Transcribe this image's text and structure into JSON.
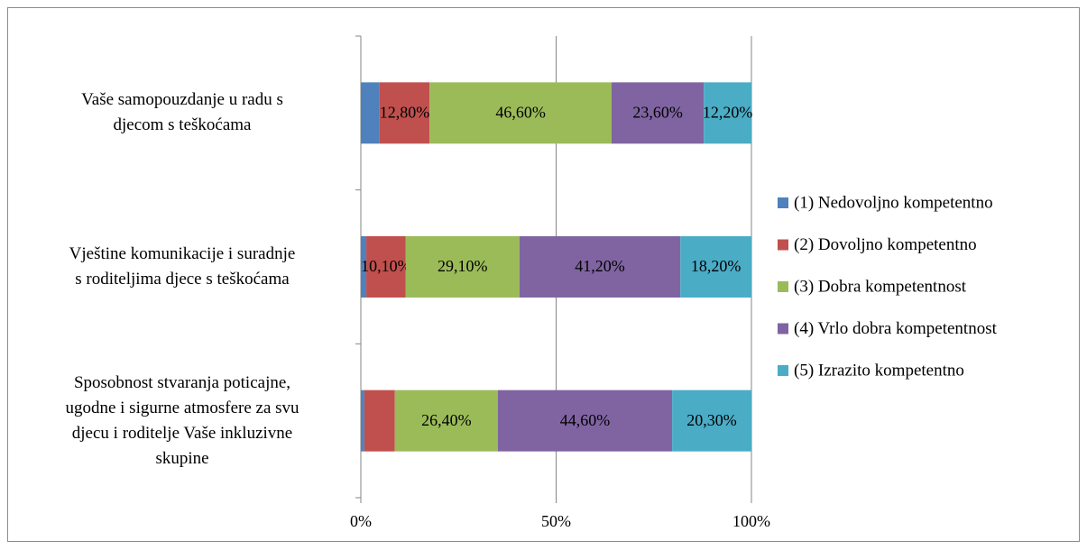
{
  "chart_data": {
    "type": "bar",
    "orientation": "horizontal",
    "stacked": true,
    "categories": [
      "Vaše samopouzdanje u radu s\ndjecom s teškoćama",
      "Vještine komunikacije i suradnje\ns roditeljima djece s teškoćama",
      "Sposobnost stvaranja poticajne,\nugodne i sigurne atmosfere za svu\ndjecu i roditelje Vaše inkluzivne\nskupine"
    ],
    "series": [
      {
        "name": "(1) Nedovoljno kompetentno",
        "color": "#4f81bd",
        "values": [
          4.8,
          1.4,
          0.9
        ],
        "value_labels": [
          null,
          null,
          null
        ]
      },
      {
        "name": "(2) Dovoljno kompetentno",
        "color": "#c0504d",
        "values": [
          12.8,
          10.1,
          7.8
        ],
        "value_labels": [
          "12,80%",
          "10,10%",
          null
        ]
      },
      {
        "name": "(3) Dobra kompetentnost",
        "color": "#9bbb59",
        "values": [
          46.6,
          29.1,
          26.4
        ],
        "value_labels": [
          "46,60%",
          "29,10%",
          "26,40%"
        ]
      },
      {
        "name": "(4) Vrlo dobra kompetentnost",
        "color": "#8064a2",
        "values": [
          23.6,
          41.2,
          44.6
        ],
        "value_labels": [
          "23,60%",
          "41,20%",
          "44,60%"
        ]
      },
      {
        "name": "(5) Izrazito kompetentno",
        "color": "#4bacc6",
        "values": [
          12.2,
          18.2,
          20.3
        ],
        "value_labels": [
          "12,20%",
          "18,20%",
          "20,30%"
        ]
      }
    ],
    "xlim": [
      0,
      100
    ],
    "xticks": [
      {
        "value": 0,
        "label": "0%"
      },
      {
        "value": 50,
        "label": "50%"
      },
      {
        "value": 100,
        "label": "100%"
      }
    ],
    "grid": true,
    "legend": "right"
  }
}
